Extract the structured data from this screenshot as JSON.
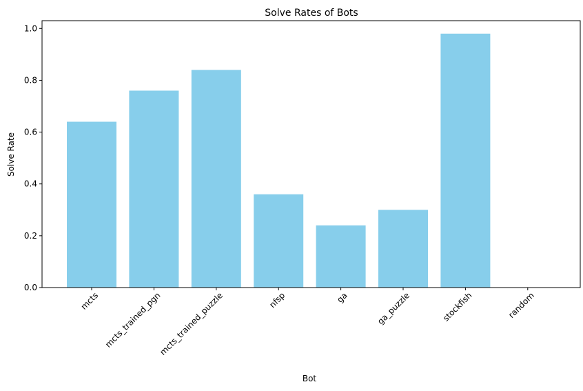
{
  "chart_data": {
    "type": "bar",
    "title": "Solve Rates of Bots",
    "xlabel": "Bot",
    "ylabel": "Solve Rate",
    "categories": [
      "mcts",
      "mcts_trained_pgn",
      "mcts_trained_puzzle",
      "nfsp",
      "ga",
      "ga_puzzle",
      "stockfish",
      "random"
    ],
    "values": [
      0.64,
      0.76,
      0.84,
      0.36,
      0.24,
      0.3,
      0.98,
      0.0
    ],
    "ylim": [
      0,
      1.03
    ],
    "yticks": [
      "0.0",
      "0.2",
      "0.4",
      "0.6",
      "0.8",
      "1.0"
    ],
    "bar_color": "#87CEEB",
    "grid": false,
    "legend": "none"
  }
}
